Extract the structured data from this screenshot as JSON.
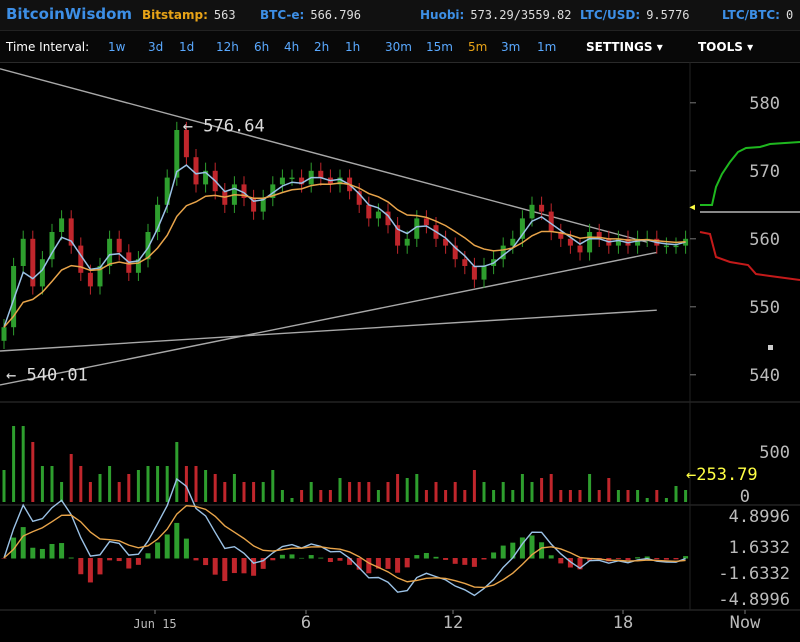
{
  "header": {
    "brand": "BitcoinWisdom",
    "tickers": [
      {
        "label": "Bitstamp:",
        "value": "563"
      },
      {
        "label": "BTC-e:",
        "value": "566.796"
      },
      {
        "label": "Huobi:",
        "value": "573.29/3559.82"
      },
      {
        "label": "LTC/USD:",
        "value": "9.5776"
      },
      {
        "label": "LTC/BTC:",
        "value": "0"
      }
    ]
  },
  "toolbar": {
    "interval_label": "Time Interval:",
    "intervals": [
      "1w",
      "3d",
      "1d",
      "12h",
      "6h",
      "4h",
      "2h",
      "1h",
      "30m",
      "15m",
      "5m",
      "3m",
      "1m"
    ],
    "active_interval": "5m",
    "settings_label": "SETTINGS",
    "tools_label": "TOOLS"
  },
  "colors": {
    "up": "#2e9e2e",
    "down": "#c0262c",
    "ema_fast": "#9bc2e6",
    "ema_slow": "#e8a44a",
    "trend": "#a8a8a8",
    "bid": "#1fb81f",
    "ask": "#c41a1a",
    "highlight": "#ffff44"
  },
  "chart_data": {
    "type": "candlestick",
    "price_axis": {
      "ticks": [
        540,
        550,
        560,
        570,
        580
      ],
      "range": [
        536,
        586
      ]
    },
    "price": [
      547,
      556,
      560,
      553,
      557,
      561,
      563,
      559,
      555,
      553,
      556,
      560,
      558,
      555,
      557,
      561,
      565,
      569,
      576,
      572,
      568,
      570,
      567,
      565,
      568,
      566,
      564,
      566,
      568,
      569,
      569,
      568,
      570,
      569,
      568,
      569,
      567,
      565,
      563,
      564,
      562,
      559,
      560,
      563,
      562,
      560,
      559,
      557,
      556,
      554,
      556,
      557,
      559,
      560,
      563,
      565,
      564,
      561,
      560,
      559,
      558,
      561,
      560,
      559,
      560,
      559,
      560,
      560,
      559,
      559,
      559,
      560
    ],
    "high_annotation": "576.64",
    "low_annotation": "540.01",
    "current_price_marker": "562",
    "volume_axis": {
      "ticks": [
        "500",
        "0"
      ]
    },
    "volume_label": "253.79",
    "macd_axis": {
      "ticks": [
        "4.8996",
        "1.6332",
        "-1.6332",
        "-4.8996"
      ]
    },
    "x_axis": {
      "labels": [
        "Jun 15",
        "6",
        "12",
        "18",
        "Now"
      ]
    },
    "trendlines": [
      {
        "from": [
          0,
          585
        ],
        "to": [
          67,
          559.5
        ]
      },
      {
        "from": [
          0,
          538.5
        ],
        "to": [
          68,
          558
        ]
      },
      {
        "from": [
          0,
          543.5
        ],
        "to": [
          68,
          549.5
        ]
      }
    ]
  }
}
